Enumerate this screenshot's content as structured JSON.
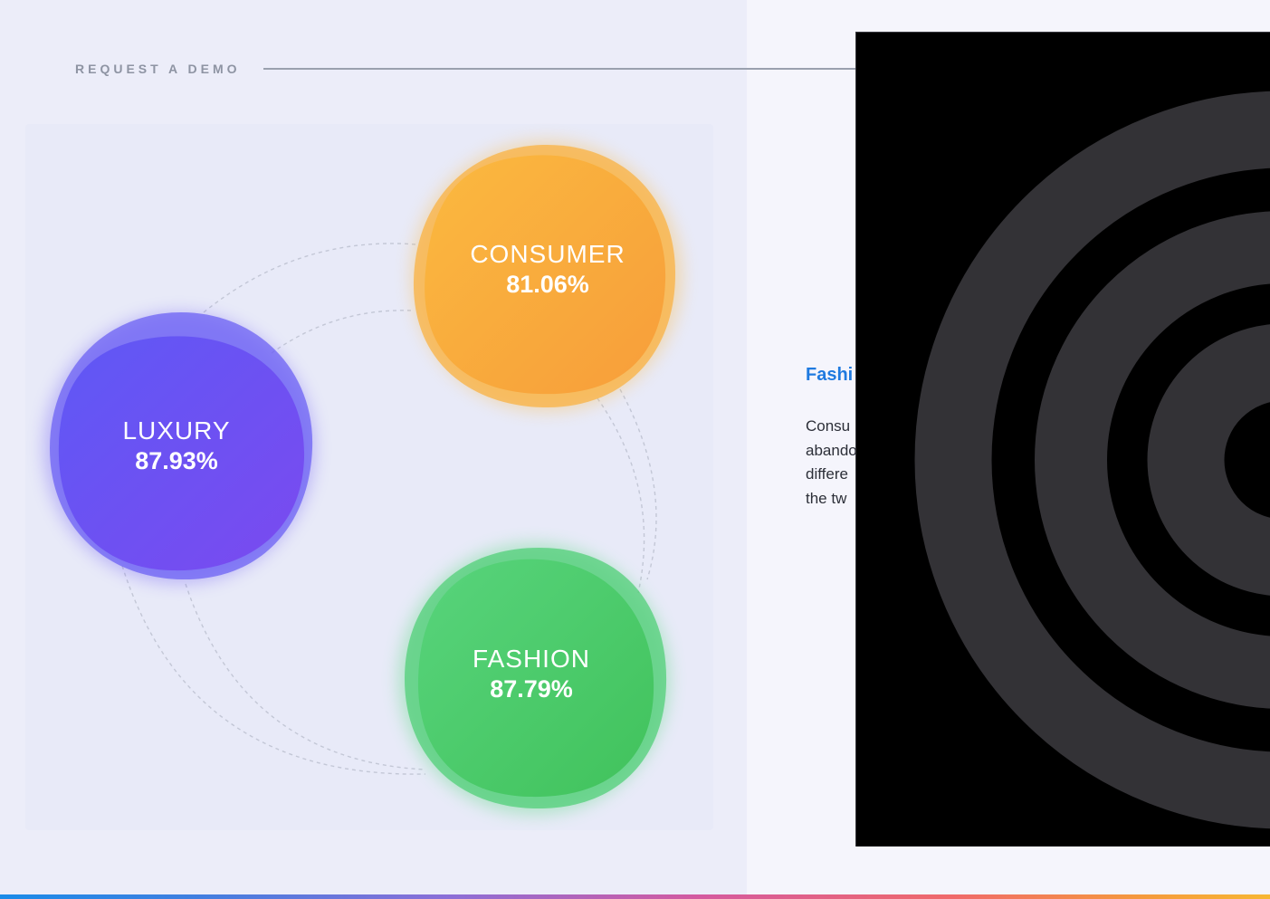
{
  "header": {
    "label": "REQUEST A DEMO"
  },
  "segments": [
    {
      "name": "CONSUMER",
      "value": "81.06%",
      "color": "#f9a93a"
    },
    {
      "name": "LUXURY",
      "value": "87.93%",
      "color": "#6f4ff2"
    },
    {
      "name": "FASHION",
      "value": "87.79%",
      "color": "#45c865"
    }
  ],
  "section": {
    "title": "Fashi",
    "body_lines": [
      "Consu",
      "abando",
      "differe",
      "the tw"
    ]
  },
  "overlay": {
    "icon": "concentric-rings-icon",
    "background": "#000000",
    "ring_color": "#333236"
  },
  "colors": {
    "accent": "#1f7ae0",
    "bar_gradient": [
      "#1a8be8",
      "#8a6fd8",
      "#f06a6a",
      "#f7b733"
    ]
  }
}
